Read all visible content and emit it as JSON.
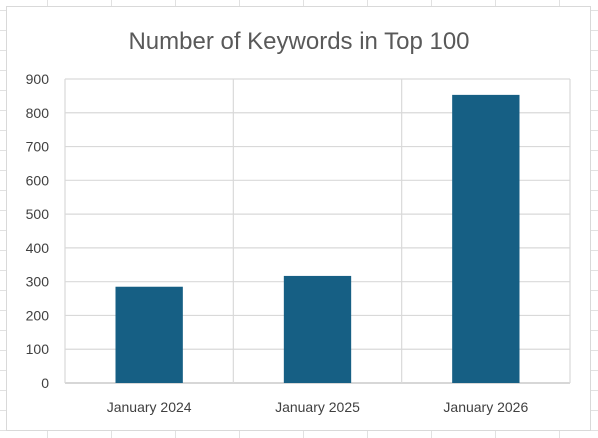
{
  "chart_data": {
    "type": "bar",
    "title": "Number of Keywords in Top 100",
    "xlabel": "",
    "ylabel": "",
    "categories": [
      "January 2024",
      "January 2025",
      "January 2026"
    ],
    "values": [
      285,
      317,
      853
    ],
    "ylim": [
      0,
      900
    ],
    "yticks": [
      0,
      100,
      200,
      300,
      400,
      500,
      600,
      700,
      800,
      900
    ],
    "grid": true,
    "legend": "none",
    "colors": {
      "bar": "#165f84",
      "grid": "#d9d9d9",
      "axis": "#bfbfbf",
      "title": "#595959",
      "tick": "#404040"
    }
  }
}
